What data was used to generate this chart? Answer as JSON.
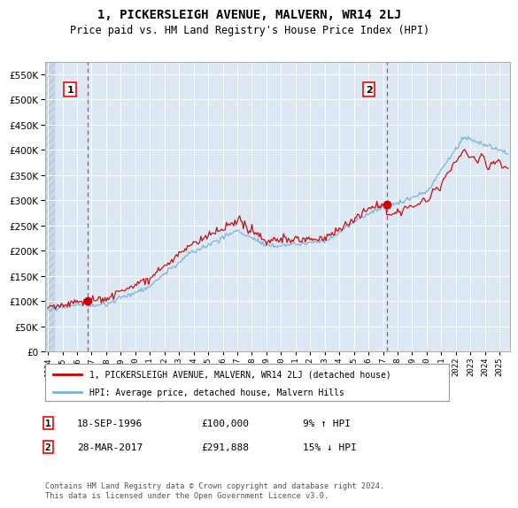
{
  "title": "1, PICKERSLEIGH AVENUE, MALVERN, WR14 2LJ",
  "subtitle": "Price paid vs. HM Land Registry's House Price Index (HPI)",
  "background_color": "#ffffff",
  "plot_bg_color": "#dce9f5",
  "grid_color": "#ffffff",
  "hatch_bg_color": "#c8d8e8",
  "sale1_price": 100000,
  "sale1_label": "1",
  "sale1_x": 1996.72,
  "sale2_price": 291888,
  "sale2_label": "2",
  "sale2_x": 2017.24,
  "legend_line1": "1, PICKERSLEIGH AVENUE, MALVERN, WR14 2LJ (detached house)",
  "legend_line2": "HPI: Average price, detached house, Malvern Hills",
  "note1_label": "1",
  "note1_date": "18-SEP-1996",
  "note1_price": "£100,000",
  "note1_hpi": "9% ↑ HPI",
  "note2_label": "2",
  "note2_date": "28-MAR-2017",
  "note2_price": "£291,888",
  "note2_hpi": "15% ↓ HPI",
  "footer": "Contains HM Land Registry data © Crown copyright and database right 2024.\nThis data is licensed under the Open Government Licence v3.0.",
  "line_red": "#cc0000",
  "line_blue": "#7ab0d4",
  "marker_red": "#cc0000",
  "ylim_max": 575000,
  "ylim_min": 0,
  "xlim_min": 1993.8,
  "xlim_max": 2025.7
}
